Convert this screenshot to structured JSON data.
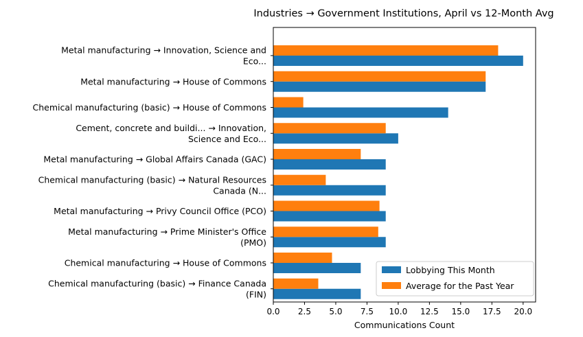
{
  "chart_data": {
    "type": "bar",
    "orientation": "horizontal",
    "title": "Industries → Government Institutions, April vs 12-Month Avg",
    "xlabel": "Communications Count",
    "ylabel": "",
    "xlim": [
      0,
      21
    ],
    "xticks": [
      "0.0",
      "2.5",
      "5.0",
      "7.5",
      "10.0",
      "12.5",
      "15.0",
      "17.5",
      "20.0"
    ],
    "xtick_values": [
      0,
      2.5,
      5,
      7.5,
      10,
      12.5,
      15,
      17.5,
      20
    ],
    "categories": [
      [
        "Metal manufacturing → Innovation, Science and",
        "Eco..."
      ],
      [
        "Metal manufacturing → House of Commons"
      ],
      [
        "Chemical manufacturing (basic) → House of Commons"
      ],
      [
        "Cement, concrete and buildi... → Innovation,",
        "Science and Eco..."
      ],
      [
        "Metal manufacturing → Global Affairs Canada (GAC)"
      ],
      [
        "Chemical manufacturing (basic) → Natural Resources",
        "Canada (N..."
      ],
      [
        "Metal manufacturing → Privy Council Office (PCO)"
      ],
      [
        "Metal manufacturing → Prime Minister's Office",
        "(PMO)"
      ],
      [
        "Chemical manufacturing → House of Commons"
      ],
      [
        "Chemical manufacturing (basic) → Finance Canada",
        "(FIN)"
      ]
    ],
    "series": [
      {
        "name": "Lobbying This Month",
        "color": "#1f77b4",
        "values": [
          20,
          17,
          14,
          10,
          9,
          9,
          9,
          9,
          7,
          7
        ]
      },
      {
        "name": "Average for the Past Year",
        "color": "#ff7f0e",
        "values": [
          18,
          17,
          2.4,
          9,
          7,
          4.2,
          8.5,
          8.4,
          4.7,
          3.6
        ]
      }
    ],
    "legend_position": "lower-right",
    "grid": false
  }
}
